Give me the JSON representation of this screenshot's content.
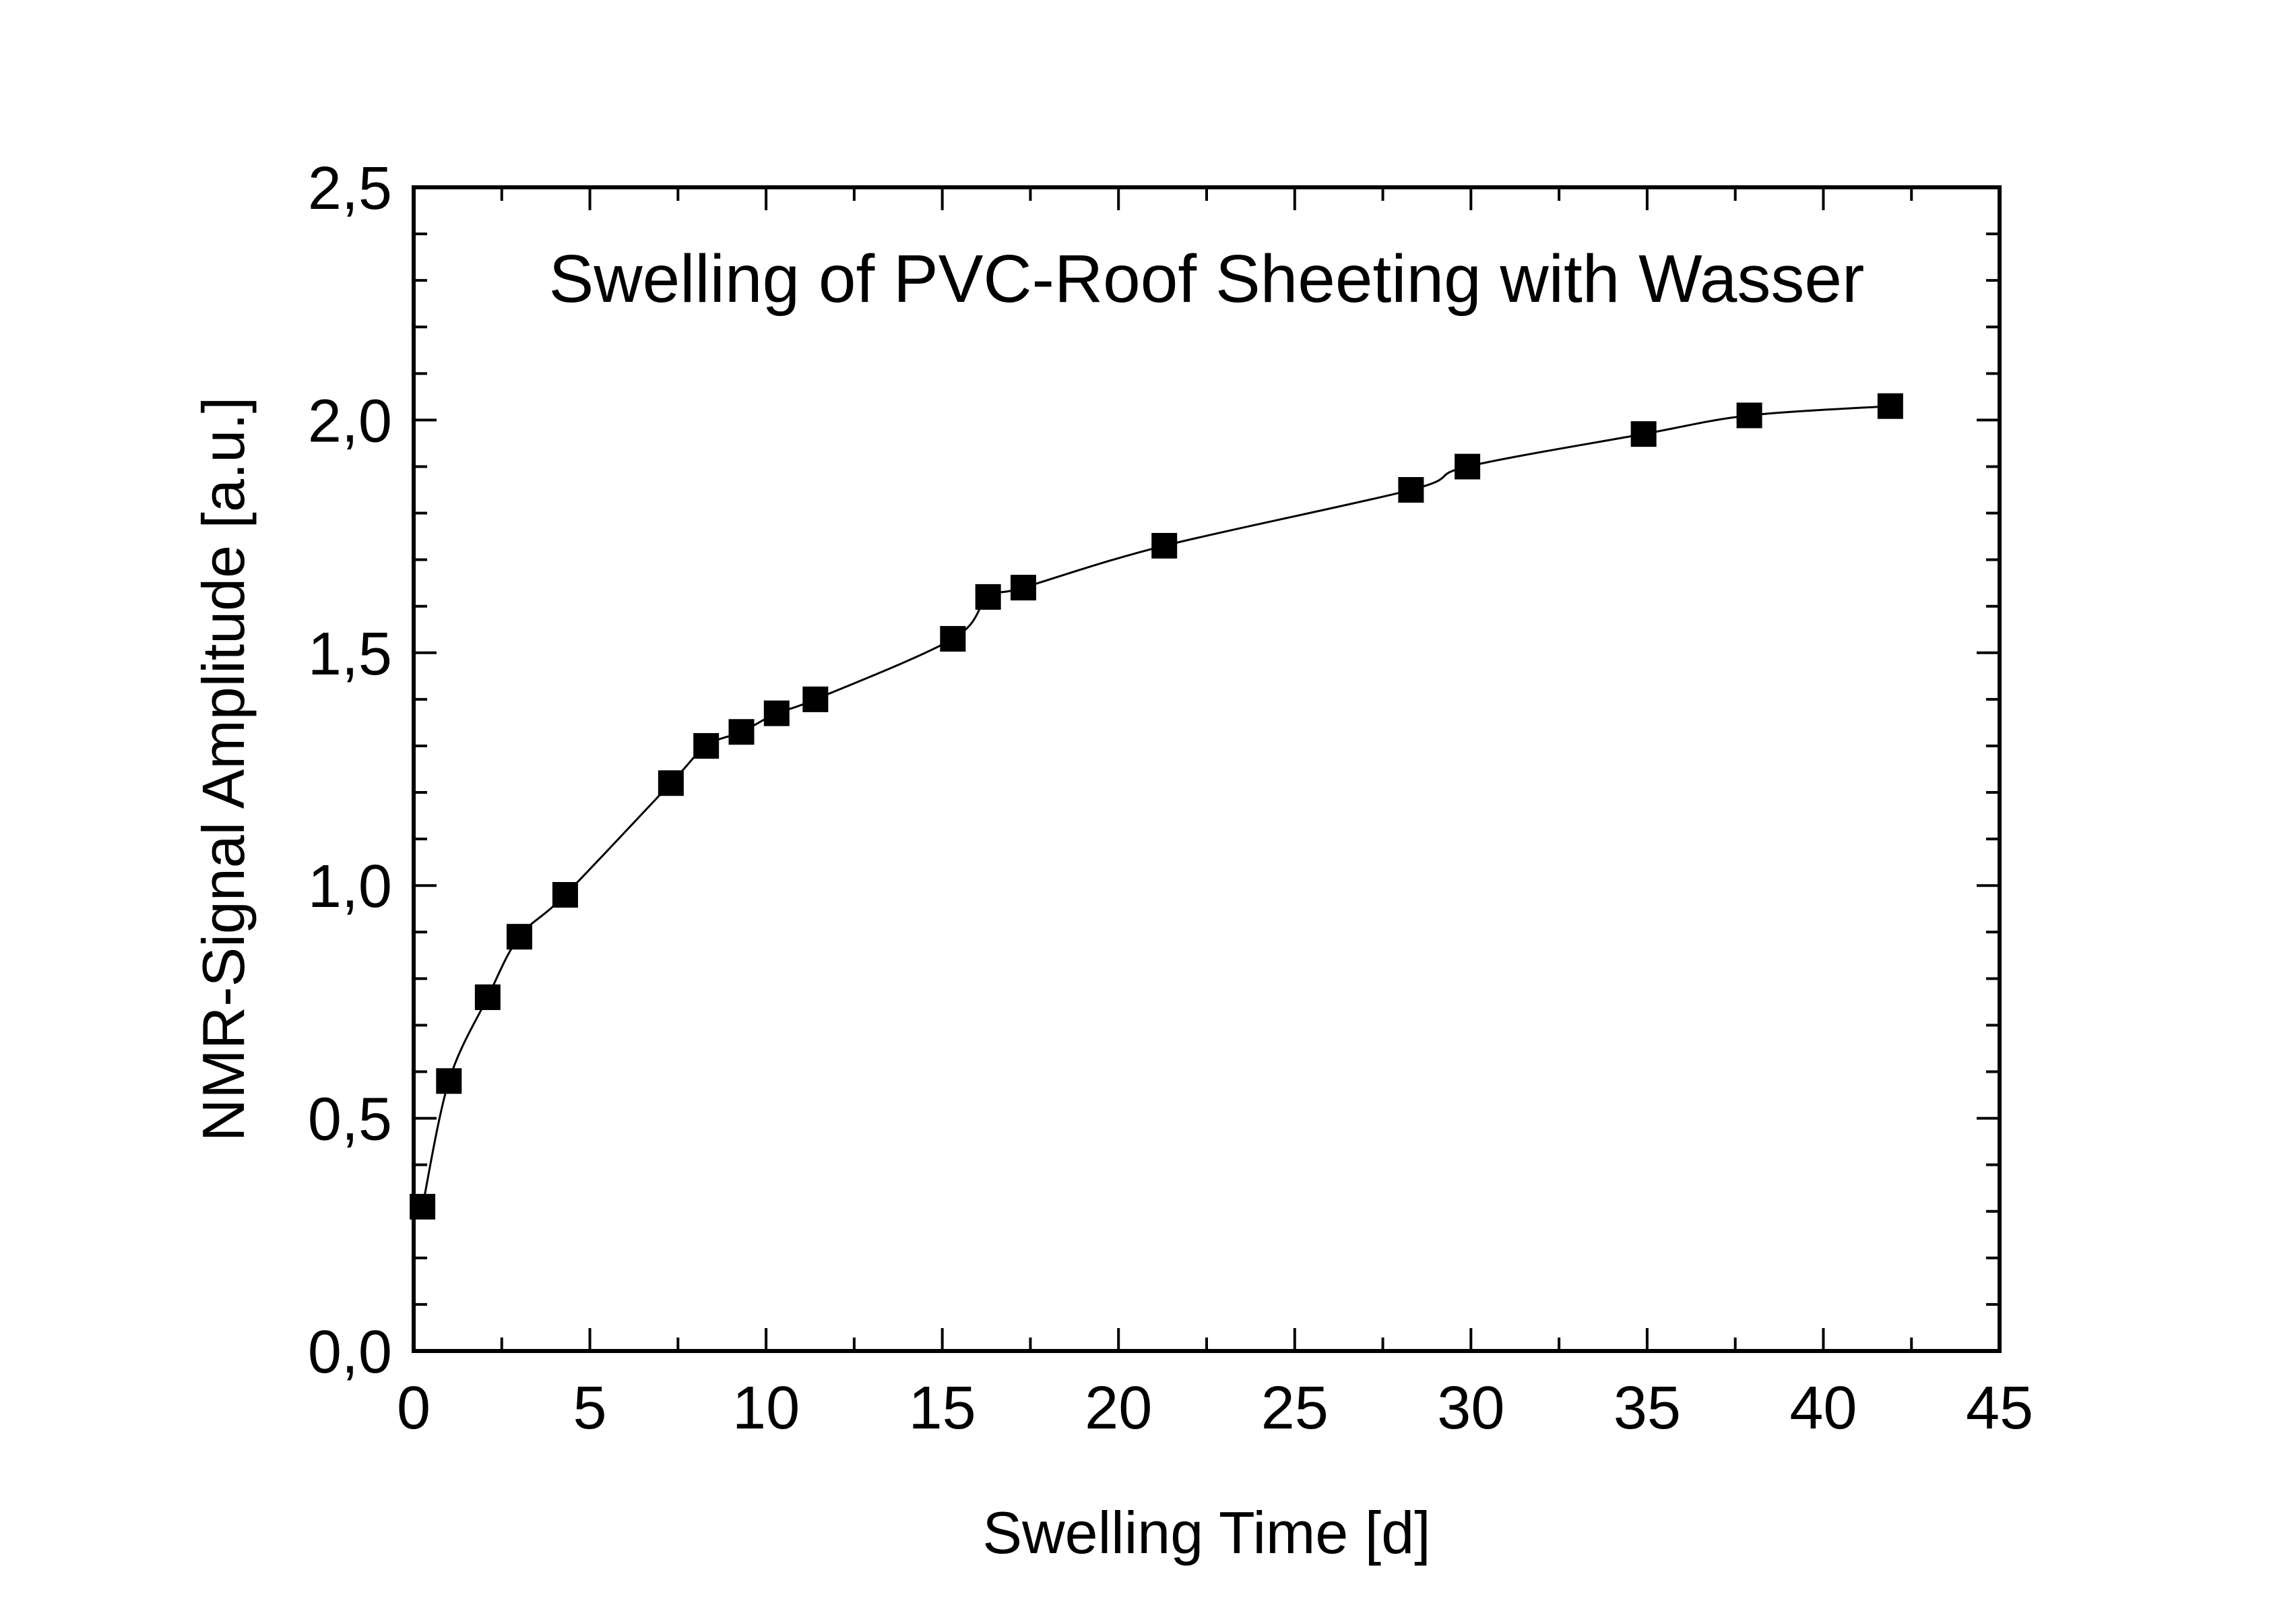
{
  "chart_data": {
    "type": "scatter",
    "title": "Swelling of PVC-Roof Sheeting with Wasser",
    "xlabel": "Swelling Time [d]",
    "ylabel": "NMR-Signal Amplitude [a.u.]",
    "xlim": [
      0,
      45
    ],
    "ylim": [
      0,
      2.5
    ],
    "x_ticks": [
      0,
      5,
      10,
      15,
      20,
      25,
      30,
      35,
      40,
      45
    ],
    "x_tick_labels": [
      "0",
      "5",
      "10",
      "15",
      "20",
      "25",
      "30",
      "35",
      "40",
      "45"
    ],
    "y_ticks": [
      0,
      0.5,
      1.0,
      1.5,
      2.0,
      2.5
    ],
    "y_tick_labels": [
      "0,0",
      "0,5",
      "1,0",
      "1,5",
      "2,0",
      "2,5"
    ],
    "grid": false,
    "marker": "square",
    "connected_by_line": true,
    "color": "#000000",
    "series": [
      {
        "x": [
          0.25,
          1.0,
          2.1,
          3.0,
          4.3,
          7.3,
          8.3,
          9.3,
          10.3,
          11.4,
          15.3,
          16.3,
          17.3,
          21.3,
          28.3,
          29.9,
          34.9,
          37.9,
          41.9
        ],
        "y": [
          0.31,
          0.58,
          0.76,
          0.89,
          0.98,
          1.22,
          1.3,
          1.33,
          1.37,
          1.4,
          1.53,
          1.62,
          1.64,
          1.73,
          1.85,
          1.9,
          1.97,
          2.01,
          2.03
        ]
      }
    ]
  }
}
